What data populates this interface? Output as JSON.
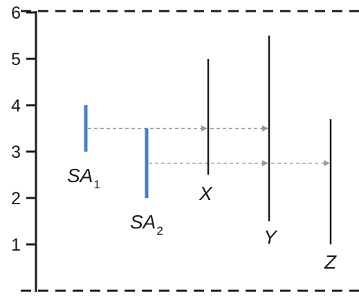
{
  "scale": {
    "min": 0,
    "max": 6,
    "ticks": [
      "1",
      "2",
      "3",
      "4",
      "5",
      "6"
    ]
  },
  "segments": [
    {
      "id": "SA1",
      "label": "SA",
      "subscript": "1",
      "low": 3.0,
      "high": 4.0,
      "color": "#4a7fc1"
    },
    {
      "id": "SA2",
      "label": "SA",
      "subscript": "2",
      "low": 2.0,
      "high": 3.5,
      "color": "#4a7fc1"
    },
    {
      "id": "X",
      "label": "X",
      "subscript": "",
      "low": 2.5,
      "high": 5.0,
      "color": "#1a1a1a"
    },
    {
      "id": "Y",
      "label": "Y",
      "subscript": "",
      "low": 1.5,
      "high": 5.5,
      "color": "#1a1a1a"
    },
    {
      "id": "Z",
      "label": "Z",
      "subscript": "",
      "low": 1.0,
      "high": 3.7,
      "color": "#1a1a1a"
    }
  ],
  "arrows": [
    {
      "from": "SA1",
      "to": "X",
      "value": 3.5
    },
    {
      "from": "X",
      "to": "Y",
      "value": 3.5
    },
    {
      "from": "SA2",
      "to": "Y",
      "value": 2.75
    },
    {
      "from": "Y",
      "to": "Z",
      "value": 2.75
    }
  ],
  "colors": {
    "axis": "#1a1a1a",
    "arrow": "#9a9a9a",
    "blue": "#4a7fc1"
  }
}
